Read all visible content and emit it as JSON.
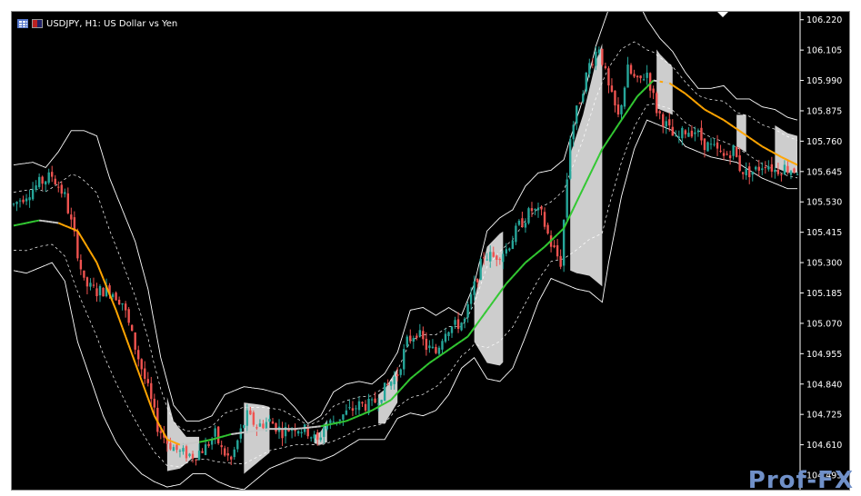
{
  "window": {
    "symbol_title": "USDJPY, H1:  US Dollar vs Yen",
    "icons": [
      "table-icon",
      "flag-icon"
    ]
  },
  "watermark": {
    "text": "Prof-FX"
  },
  "colors": {
    "background": "#000000",
    "bull": "#26a69a",
    "bear": "#ef5350",
    "ma_up": "#32c832",
    "ma_down": "#ffa500",
    "ma_flat": "#c8c8c8",
    "band": "#ffffff",
    "squeeze_fill": "#d8d8d8",
    "axis_text": "#ffffff"
  },
  "chart_data": {
    "type": "line",
    "instrument": "USDJPY",
    "timeframe": "H1",
    "title": "USDJPY, H1:  US Dollar vs Yen",
    "ylim": [
      104.44,
      106.25
    ],
    "y_ticks": [
      "106.220",
      "106.105",
      "105.990",
      "105.875",
      "105.760",
      "105.645",
      "105.530",
      "105.415",
      "105.300",
      "105.185",
      "105.070",
      "104.955",
      "104.840",
      "104.725",
      "104.610",
      "104.495"
    ],
    "grid": false,
    "bars": 200,
    "close_path": [
      [
        0,
        105.52
      ],
      [
        8,
        105.6
      ],
      [
        12,
        105.63
      ],
      [
        16,
        105.55
      ],
      [
        19,
        105.4
      ],
      [
        22,
        105.22
      ],
      [
        26,
        105.19
      ],
      [
        30,
        105.2
      ],
      [
        34,
        105.15
      ],
      [
        38,
        104.98
      ],
      [
        42,
        104.82
      ],
      [
        45,
        104.68
      ],
      [
        48,
        104.62
      ],
      [
        52,
        104.58
      ],
      [
        56,
        104.57
      ],
      [
        60,
        104.6
      ],
      [
        63,
        104.65
      ],
      [
        65,
        104.59
      ],
      [
        68,
        104.55
      ],
      [
        71,
        104.66
      ],
      [
        73,
        104.72
      ],
      [
        76,
        104.68
      ],
      [
        80,
        104.7
      ],
      [
        84,
        104.66
      ],
      [
        88,
        104.68
      ],
      [
        92,
        104.66
      ],
      [
        95,
        104.62
      ],
      [
        97,
        104.68
      ],
      [
        100,
        104.7
      ],
      [
        104,
        104.73
      ],
      [
        108,
        104.76
      ],
      [
        112,
        104.76
      ],
      [
        116,
        104.82
      ],
      [
        120,
        104.88
      ],
      [
        123,
        105.0
      ],
      [
        126,
        105.04
      ],
      [
        129,
        104.98
      ],
      [
        132,
        104.96
      ],
      [
        135,
        105.05
      ],
      [
        138,
        105.06
      ],
      [
        141,
        105.08
      ],
      [
        144,
        105.21
      ],
      [
        147,
        105.33
      ],
      [
        150,
        105.32
      ],
      [
        154,
        105.35
      ],
      [
        158,
        105.44
      ],
      [
        162,
        105.5
      ],
      [
        165,
        105.48
      ],
      [
        168,
        105.37
      ],
      [
        171,
        105.3
      ],
      [
        174,
        105.78
      ],
      [
        177,
        105.92
      ],
      [
        180,
        106.05
      ],
      [
        183,
        106.12
      ],
      [
        186,
        105.96
      ],
      [
        189,
        105.85
      ],
      [
        192,
        106.03
      ],
      [
        195,
        105.98
      ],
      [
        198,
        106.02
      ],
      [
        201,
        105.88
      ],
      [
        204,
        105.82
      ],
      [
        207,
        105.76
      ],
      [
        210,
        105.8
      ],
      [
        213,
        105.8
      ],
      [
        216,
        105.75
      ],
      [
        219,
        105.73
      ],
      [
        222,
        105.7
      ],
      [
        225,
        105.73
      ],
      [
        227,
        105.66
      ],
      [
        229,
        105.64
      ],
      [
        232,
        105.65
      ],
      [
        235,
        105.68
      ],
      [
        238,
        105.65
      ],
      [
        241,
        105.66
      ],
      [
        245,
        105.65
      ]
    ],
    "moving_average": [
      [
        0,
        105.44
      ],
      [
        8,
        105.46
      ],
      [
        14,
        105.45
      ],
      [
        20,
        105.42
      ],
      [
        26,
        105.3
      ],
      [
        32,
        105.12
      ],
      [
        38,
        104.92
      ],
      [
        44,
        104.72
      ],
      [
        48,
        104.63
      ],
      [
        52,
        104.61
      ],
      [
        58,
        104.62
      ],
      [
        62,
        104.63
      ],
      [
        68,
        104.65
      ],
      [
        74,
        104.66
      ],
      [
        80,
        104.67
      ],
      [
        88,
        104.67
      ],
      [
        96,
        104.68
      ],
      [
        104,
        104.7
      ],
      [
        112,
        104.74
      ],
      [
        118,
        104.78
      ],
      [
        124,
        104.86
      ],
      [
        130,
        104.92
      ],
      [
        136,
        104.97
      ],
      [
        142,
        105.02
      ],
      [
        148,
        105.12
      ],
      [
        154,
        105.22
      ],
      [
        160,
        105.3
      ],
      [
        166,
        105.36
      ],
      [
        172,
        105.43
      ],
      [
        178,
        105.58
      ],
      [
        184,
        105.73
      ],
      [
        190,
        105.84
      ],
      [
        195,
        105.93
      ],
      [
        200,
        105.99
      ],
      [
        205,
        105.98
      ],
      [
        210,
        105.94
      ],
      [
        216,
        105.88
      ],
      [
        222,
        105.84
      ],
      [
        228,
        105.79
      ],
      [
        234,
        105.74
      ],
      [
        240,
        105.7
      ],
      [
        245,
        105.67
      ]
    ],
    "upper_band": [
      [
        0,
        105.67
      ],
      [
        6,
        105.68
      ],
      [
        10,
        105.66
      ],
      [
        14,
        105.72
      ],
      [
        18,
        105.8
      ],
      [
        22,
        105.8
      ],
      [
        26,
        105.78
      ],
      [
        30,
        105.62
      ],
      [
        34,
        105.5
      ],
      [
        38,
        105.38
      ],
      [
        42,
        105.2
      ],
      [
        46,
        104.94
      ],
      [
        50,
        104.76
      ],
      [
        54,
        104.7
      ],
      [
        58,
        104.7
      ],
      [
        62,
        104.72
      ],
      [
        66,
        104.8
      ],
      [
        72,
        104.83
      ],
      [
        78,
        104.82
      ],
      [
        84,
        104.8
      ],
      [
        88,
        104.75
      ],
      [
        92,
        104.69
      ],
      [
        96,
        104.72
      ],
      [
        100,
        104.81
      ],
      [
        104,
        104.84
      ],
      [
        108,
        104.85
      ],
      [
        112,
        104.84
      ],
      [
        116,
        104.88
      ],
      [
        120,
        104.96
      ],
      [
        124,
        105.12
      ],
      [
        128,
        105.13
      ],
      [
        132,
        105.1
      ],
      [
        136,
        105.13
      ],
      [
        140,
        105.1
      ],
      [
        144,
        105.22
      ],
      [
        148,
        105.42
      ],
      [
        152,
        105.47
      ],
      [
        156,
        105.5
      ],
      [
        160,
        105.59
      ],
      [
        164,
        105.64
      ],
      [
        168,
        105.65
      ],
      [
        172,
        105.69
      ],
      [
        174,
        105.77
      ],
      [
        178,
        105.92
      ],
      [
        182,
        106.12
      ],
      [
        186,
        106.26
      ],
      [
        190,
        106.33
      ],
      [
        194,
        106.32
      ],
      [
        198,
        106.22
      ],
      [
        202,
        106.15
      ],
      [
        206,
        106.1
      ],
      [
        210,
        106.02
      ],
      [
        214,
        105.96
      ],
      [
        218,
        105.96
      ],
      [
        222,
        105.97
      ],
      [
        226,
        105.92
      ],
      [
        230,
        105.92
      ],
      [
        234,
        105.89
      ],
      [
        238,
        105.88
      ],
      [
        242,
        105.85
      ],
      [
        245,
        105.84
      ]
    ],
    "lower_band": [
      [
        0,
        105.27
      ],
      [
        4,
        105.26
      ],
      [
        8,
        105.28
      ],
      [
        12,
        105.3
      ],
      [
        16,
        105.23
      ],
      [
        20,
        105.0
      ],
      [
        24,
        104.86
      ],
      [
        28,
        104.72
      ],
      [
        32,
        104.62
      ],
      [
        36,
        104.55
      ],
      [
        40,
        104.5
      ],
      [
        44,
        104.47
      ],
      [
        48,
        104.45
      ],
      [
        52,
        104.46
      ],
      [
        56,
        104.5
      ],
      [
        60,
        104.5
      ],
      [
        64,
        104.47
      ],
      [
        68,
        104.45
      ],
      [
        72,
        104.44
      ],
      [
        76,
        104.48
      ],
      [
        80,
        104.52
      ],
      [
        84,
        104.54
      ],
      [
        88,
        104.56
      ],
      [
        92,
        104.56
      ],
      [
        96,
        104.55
      ],
      [
        100,
        104.57
      ],
      [
        104,
        104.6
      ],
      [
        108,
        104.63
      ],
      [
        112,
        104.63
      ],
      [
        116,
        104.63
      ],
      [
        120,
        104.71
      ],
      [
        124,
        104.73
      ],
      [
        128,
        104.72
      ],
      [
        132,
        104.74
      ],
      [
        136,
        104.8
      ],
      [
        140,
        104.9
      ],
      [
        144,
        104.94
      ],
      [
        148,
        104.86
      ],
      [
        152,
        104.85
      ],
      [
        156,
        104.9
      ],
      [
        160,
        105.02
      ],
      [
        164,
        105.15
      ],
      [
        168,
        105.24
      ],
      [
        172,
        105.22
      ],
      [
        176,
        105.2
      ],
      [
        180,
        105.19
      ],
      [
        184,
        105.15
      ],
      [
        186,
        105.3
      ],
      [
        190,
        105.55
      ],
      [
        194,
        105.73
      ],
      [
        198,
        105.84
      ],
      [
        202,
        105.82
      ],
      [
        206,
        105.8
      ],
      [
        210,
        105.74
      ],
      [
        214,
        105.72
      ],
      [
        218,
        105.7
      ],
      [
        222,
        105.69
      ],
      [
        226,
        105.68
      ],
      [
        230,
        105.65
      ],
      [
        234,
        105.62
      ],
      [
        238,
        105.6
      ],
      [
        242,
        105.58
      ],
      [
        245,
        105.58
      ]
    ],
    "squeeze_zones": [
      [
        48,
        58
      ],
      [
        72,
        80
      ],
      [
        94,
        98
      ],
      [
        114,
        120
      ],
      [
        144,
        153
      ],
      [
        174,
        184
      ],
      [
        201,
        206
      ],
      [
        226,
        229
      ],
      [
        238,
        245
      ]
    ]
  }
}
